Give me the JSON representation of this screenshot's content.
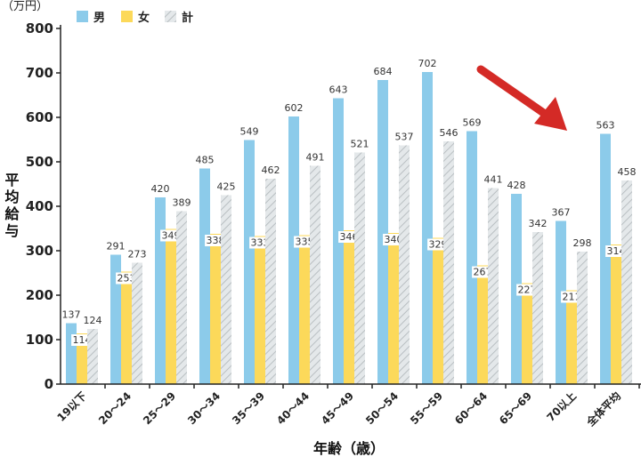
{
  "chart_data": {
    "type": "bar",
    "unit": "（万円）",
    "xlabel": "年齢（歳）",
    "ylabel": "平均給与",
    "ylim": [
      0,
      800
    ],
    "yticks": [
      "0",
      "100",
      "200",
      "300",
      "400",
      "500",
      "600",
      "700",
      "800"
    ],
    "categories": [
      "19以下",
      "20～24",
      "25～29",
      "30～34",
      "35～39",
      "40～44",
      "45～49",
      "50～54",
      "55～59",
      "60～64",
      "65～69",
      "70以上",
      "全体平均"
    ],
    "series": [
      {
        "name": "男",
        "color": "#8ccbea",
        "values": [
          137,
          291,
          420,
          485,
          549,
          602,
          643,
          684,
          702,
          569,
          428,
          367,
          563
        ]
      },
      {
        "name": "女",
        "color": "#fcd95a",
        "values": [
          114,
          253,
          349,
          338,
          333,
          335,
          346,
          340,
          329,
          267,
          227,
          211,
          314
        ]
      },
      {
        "name": "計",
        "color": "#d3d8da",
        "pattern": "diagonal-hatch",
        "values": [
          124,
          273,
          389,
          425,
          462,
          491,
          521,
          537,
          546,
          441,
          342,
          298,
          458
        ]
      }
    ],
    "legend": "top-left",
    "grid": false,
    "annotation": {
      "type": "arrow",
      "color": "#d42a26",
      "direction": "down-right"
    }
  }
}
